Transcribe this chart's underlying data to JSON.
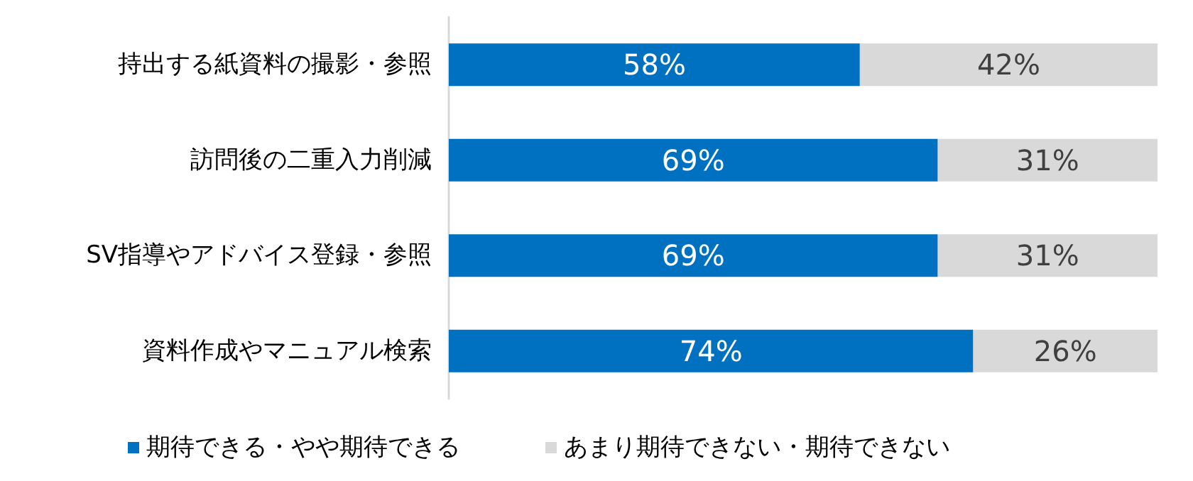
{
  "chart_data": {
    "type": "bar",
    "orientation": "horizontal",
    "stacked": true,
    "categories": [
      "持出する紙資料の撮影・参照",
      "訪問後の二重入力削減",
      "SV指導やアドバイス登録・参照",
      "資料作成やマニュアル検索"
    ],
    "series": [
      {
        "name": "期待できる・やや期待できる",
        "color": "#0070c0",
        "values": [
          58,
          69,
          69,
          74
        ],
        "value_labels": [
          "58%",
          "69%",
          "69%",
          "74%"
        ]
      },
      {
        "name": "あまり期待できない・期待できない",
        "color": "#d9d9d9",
        "values": [
          42,
          31,
          31,
          26
        ],
        "value_labels": [
          "42%",
          "31%",
          "31%",
          "26%"
        ]
      }
    ],
    "xlim": [
      0,
      100
    ],
    "tick_labels": "y",
    "legend": "bottom",
    "marker": "square"
  }
}
